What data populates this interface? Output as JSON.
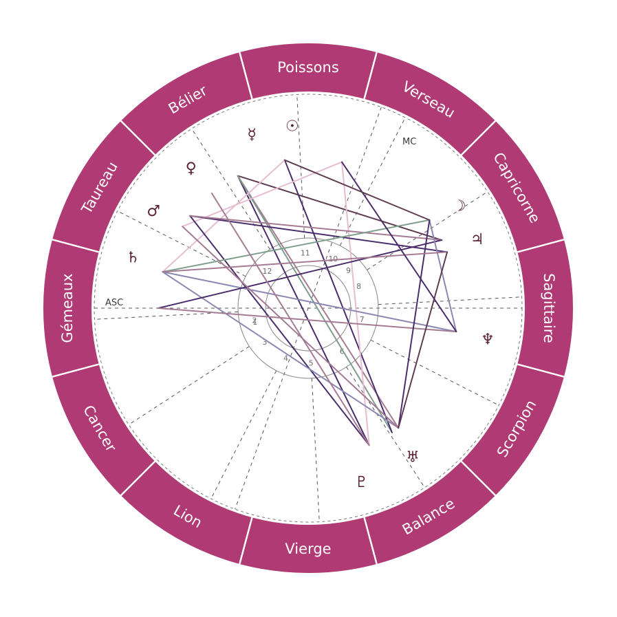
{
  "colors": {
    "ring": "#b03a74",
    "ring_divider": "#ffffff",
    "glyph": "#5a1f35",
    "house_line": "#555555",
    "aspect_palette": [
      "#4a2d6b",
      "#a47b93",
      "#e8bcd0",
      "#7e9e8c",
      "#5e3c52",
      "#8b87b3"
    ]
  },
  "signs": [
    {
      "name": "Poissons",
      "mid_deg": 90
    },
    {
      "name": "Verseau",
      "mid_deg": 60
    },
    {
      "name": "Capricorne",
      "mid_deg": 30
    },
    {
      "name": "Sagittaire",
      "mid_deg": 0
    },
    {
      "name": "Scorpion",
      "mid_deg": -30
    },
    {
      "name": "Balance",
      "mid_deg": -60
    },
    {
      "name": "Vierge",
      "mid_deg": -90
    },
    {
      "name": "Lion",
      "mid_deg": -120
    },
    {
      "name": "Cancer",
      "mid_deg": -150
    },
    {
      "name": "Gémeaux",
      "mid_deg": 180
    },
    {
      "name": "Taureau",
      "mid_deg": 150
    },
    {
      "name": "Bélier",
      "mid_deg": 120
    }
  ],
  "axes": {
    "asc_label": "ASC",
    "mc_label": "MC"
  },
  "houses": [
    {
      "n": "1"
    },
    {
      "n": "2"
    },
    {
      "n": "3"
    },
    {
      "n": "4"
    },
    {
      "n": "5"
    },
    {
      "n": "6"
    },
    {
      "n": "7"
    },
    {
      "n": "8"
    },
    {
      "n": "9"
    },
    {
      "n": "10"
    },
    {
      "n": "11"
    },
    {
      "n": "12"
    }
  ],
  "planets": [
    {
      "name": "sun",
      "glyph": "☉",
      "deg": 95
    },
    {
      "name": "mercury",
      "glyph": "☿",
      "deg": 108
    },
    {
      "name": "venus",
      "glyph": "♀",
      "deg": 130
    },
    {
      "name": "mars",
      "glyph": "♂",
      "deg": 148
    },
    {
      "name": "saturn",
      "glyph": "♄",
      "deg": 164
    },
    {
      "name": "moon",
      "glyph": "☽",
      "deg": 34
    },
    {
      "name": "jupiter",
      "glyph": "♃",
      "deg": 22
    },
    {
      "name": "neptune",
      "glyph": "♆",
      "deg": -10
    },
    {
      "name": "uranus",
      "glyph": "♅",
      "deg": -55
    },
    {
      "name": "pluto",
      "glyph": "♇",
      "deg": -73
    }
  ],
  "aspect_lines": [
    {
      "from": 118,
      "to": -66,
      "color": 0
    },
    {
      "from": 118,
      "to": 27,
      "color": 4
    },
    {
      "from": 118,
      "to": -53,
      "color": 1
    },
    {
      "from": 118,
      "to": -56,
      "color": 3
    },
    {
      "from": 99,
      "to": -56,
      "color": 0
    },
    {
      "from": 99,
      "to": 166,
      "color": 2
    },
    {
      "from": 77,
      "to": 147,
      "color": 2
    },
    {
      "from": 77,
      "to": -66,
      "color": 2
    },
    {
      "from": 142,
      "to": 22,
      "color": 0
    },
    {
      "from": 142,
      "to": -66,
      "color": 0
    },
    {
      "from": 142,
      "to": 27,
      "color": 1
    },
    {
      "from": 166,
      "to": 36,
      "color": 3
    },
    {
      "from": 166,
      "to": -9,
      "color": 5
    },
    {
      "from": 166,
      "to": -53,
      "color": 5
    },
    {
      "from": 180,
      "to": 27,
      "color": 0
    },
    {
      "from": 180,
      "to": -9,
      "color": 1
    },
    {
      "from": 147,
      "to": -53,
      "color": 1
    },
    {
      "from": 36,
      "to": -9,
      "color": 5
    },
    {
      "from": 36,
      "to": -53,
      "color": 0
    },
    {
      "from": 22,
      "to": 166,
      "color": 1
    },
    {
      "from": 22,
      "to": -53,
      "color": 4
    },
    {
      "from": 77,
      "to": -9,
      "color": 0
    },
    {
      "from": 99,
      "to": 36,
      "color": 4
    },
    {
      "from": 130,
      "to": -66,
      "color": 1
    }
  ]
}
